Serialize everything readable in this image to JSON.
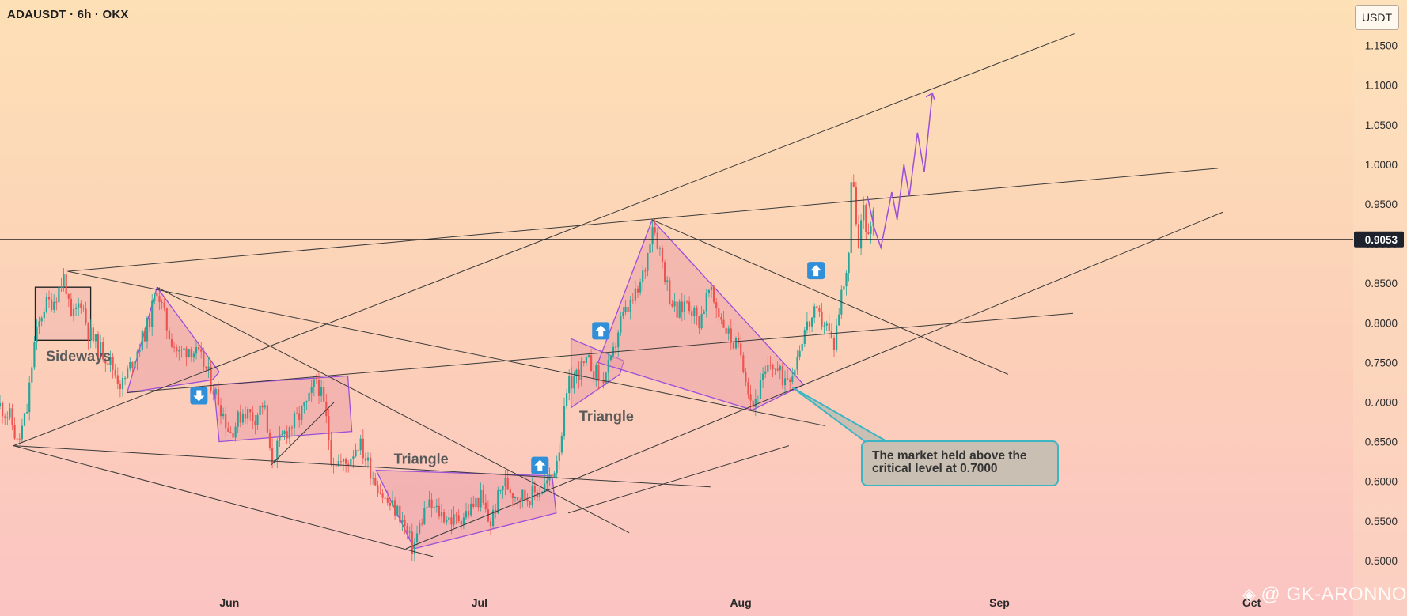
{
  "header": {
    "symbol_line": "ADAUSDT · 6h · OKX",
    "unit_badge": "USDT"
  },
  "watermark": {
    "text": "@ GK-ARONNO",
    "logo_icon": "tradingview-diamond-icon"
  },
  "annotation": {
    "line1": "The market held above the",
    "line2": "critical level at 0.7000"
  },
  "chart_data": {
    "type": "candlestick",
    "title": "",
    "xlabel": "",
    "ylabel": "",
    "y_ticks": [
      "1.1500",
      "1.1000",
      "1.0500",
      "1.0000",
      "0.9500",
      "0.9000",
      "0.8500",
      "0.8000",
      "0.7500",
      "0.7000",
      "0.6500",
      "0.6000",
      "0.5500",
      "0.5000"
    ],
    "x_ticks": [
      {
        "label": "Jun",
        "t": 0.1695
      },
      {
        "label": "Jul",
        "t": 0.3543
      },
      {
        "label": "Aug",
        "t": 0.5474
      },
      {
        "label": "Sep",
        "t": 0.7386
      },
      {
        "label": "Oct",
        "t": 0.9249
      }
    ],
    "ylim": [
      0.48,
      1.16
    ],
    "current_price": {
      "value": 0.9053,
      "label": "0.9053"
    },
    "price_path": [
      [
        0.0,
        0.695
      ],
      [
        0.008,
        0.68
      ],
      [
        0.013,
        0.645
      ],
      [
        0.02,
        0.69
      ],
      [
        0.025,
        0.77
      ],
      [
        0.032,
        0.82
      ],
      [
        0.04,
        0.83
      ],
      [
        0.048,
        0.86
      ],
      [
        0.052,
        0.8
      ],
      [
        0.06,
        0.83
      ],
      [
        0.065,
        0.79
      ],
      [
        0.072,
        0.77
      ],
      [
        0.08,
        0.755
      ],
      [
        0.09,
        0.72
      ],
      [
        0.1,
        0.76
      ],
      [
        0.11,
        0.8
      ],
      [
        0.116,
        0.845
      ],
      [
        0.124,
        0.79
      ],
      [
        0.132,
        0.76
      ],
      [
        0.14,
        0.77
      ],
      [
        0.15,
        0.75
      ],
      [
        0.156,
        0.725
      ],
      [
        0.162,
        0.7
      ],
      [
        0.17,
        0.66
      ],
      [
        0.18,
        0.69
      ],
      [
        0.188,
        0.68
      ],
      [
        0.195,
        0.7
      ],
      [
        0.2,
        0.625
      ],
      [
        0.21,
        0.66
      ],
      [
        0.22,
        0.68
      ],
      [
        0.228,
        0.7
      ],
      [
        0.234,
        0.73
      ],
      [
        0.24,
        0.69
      ],
      [
        0.245,
        0.63
      ],
      [
        0.255,
        0.62
      ],
      [
        0.265,
        0.65
      ],
      [
        0.275,
        0.61
      ],
      [
        0.285,
        0.575
      ],
      [
        0.295,
        0.56
      ],
      [
        0.305,
        0.515
      ],
      [
        0.315,
        0.57
      ],
      [
        0.325,
        0.56
      ],
      [
        0.335,
        0.55
      ],
      [
        0.345,
        0.56
      ],
      [
        0.355,
        0.58
      ],
      [
        0.362,
        0.545
      ],
      [
        0.372,
        0.6
      ],
      [
        0.38,
        0.585
      ],
      [
        0.39,
        0.58
      ],
      [
        0.4,
        0.59
      ],
      [
        0.408,
        0.605
      ],
      [
        0.414,
        0.65
      ],
      [
        0.42,
        0.72
      ],
      [
        0.428,
        0.74
      ],
      [
        0.436,
        0.75
      ],
      [
        0.444,
        0.725
      ],
      [
        0.452,
        0.75
      ],
      [
        0.458,
        0.8
      ],
      [
        0.465,
        0.82
      ],
      [
        0.472,
        0.84
      ],
      [
        0.478,
        0.88
      ],
      [
        0.482,
        0.93
      ],
      [
        0.488,
        0.89
      ],
      [
        0.494,
        0.84
      ],
      [
        0.5,
        0.81
      ],
      [
        0.508,
        0.83
      ],
      [
        0.516,
        0.8
      ],
      [
        0.524,
        0.84
      ],
      [
        0.532,
        0.81
      ],
      [
        0.54,
        0.78
      ],
      [
        0.548,
        0.76
      ],
      [
        0.556,
        0.695
      ],
      [
        0.562,
        0.72
      ],
      [
        0.57,
        0.75
      ],
      [
        0.578,
        0.73
      ],
      [
        0.586,
        0.74
      ],
      [
        0.594,
        0.79
      ],
      [
        0.602,
        0.81
      ],
      [
        0.61,
        0.8
      ],
      [
        0.616,
        0.77
      ],
      [
        0.622,
        0.84
      ],
      [
        0.627,
        0.88
      ],
      [
        0.63,
        1.01
      ],
      [
        0.634,
        0.88
      ],
      [
        0.638,
        0.95
      ],
      [
        0.642,
        0.9
      ],
      [
        0.646,
        0.96
      ]
    ],
    "projection_path": [
      [
        0.641,
        0.96
      ],
      [
        0.646,
        0.92
      ],
      [
        0.651,
        0.895
      ],
      [
        0.659,
        0.965
      ],
      [
        0.663,
        0.93
      ],
      [
        0.668,
        1.0
      ],
      [
        0.672,
        0.96
      ],
      [
        0.678,
        1.04
      ],
      [
        0.683,
        0.99
      ],
      [
        0.689,
        1.09
      ]
    ],
    "lines": [
      {
        "name": "long-upper-line",
        "from": [
          0.01,
          0.645
        ],
        "to": [
          0.794,
          1.165
        ]
      },
      {
        "name": "upper-rising-line",
        "from": [
          0.05,
          0.865
        ],
        "to": [
          0.9,
          0.995
        ]
      },
      {
        "name": "middle-rising-line",
        "from": [
          0.094,
          0.712
        ],
        "to": [
          0.793,
          0.812
        ]
      },
      {
        "name": "lower-rising-line",
        "from": [
          0.3,
          0.515
        ],
        "to": [
          0.904,
          0.94
        ]
      },
      {
        "name": "mid-lower-rising-line",
        "from": [
          0.42,
          0.56
        ],
        "to": [
          0.583,
          0.645
        ]
      },
      {
        "name": "falling-line-1",
        "from": [
          0.05,
          0.865
        ],
        "to": [
          0.61,
          0.67
        ]
      },
      {
        "name": "falling-line-2",
        "from": [
          0.116,
          0.845
        ],
        "to": [
          0.465,
          0.535
        ]
      },
      {
        "name": "falling-line-3",
        "from": [
          0.482,
          0.93
        ],
        "to": [
          0.745,
          0.735
        ]
      },
      {
        "name": "bottom-falling-line",
        "from": [
          0.01,
          0.645
        ],
        "to": [
          0.32,
          0.505
        ]
      },
      {
        "name": "flat-descending-line",
        "from": [
          0.01,
          0.645
        ],
        "to": [
          0.525,
          0.593
        ]
      },
      {
        "name": "short-diagonal",
        "from": [
          0.2,
          0.62
        ],
        "to": [
          0.247,
          0.7
        ]
      }
    ],
    "patterns": [
      {
        "name": "sideways-box",
        "label": "Sideways",
        "points": [
          [
            0.026,
            0.845
          ],
          [
            0.067,
            0.845
          ],
          [
            0.067,
            0.778
          ],
          [
            0.026,
            0.778
          ]
        ]
      },
      {
        "name": "triangle-1",
        "points": [
          [
            0.094,
            0.712
          ],
          [
            0.116,
            0.845
          ],
          [
            0.162,
            0.738
          ],
          [
            0.157,
            0.728
          ]
        ]
      },
      {
        "name": "flag-box",
        "points": [
          [
            0.158,
            0.722
          ],
          [
            0.257,
            0.733
          ],
          [
            0.26,
            0.663
          ],
          [
            0.162,
            0.65
          ]
        ]
      },
      {
        "name": "triangle-july",
        "label": "Triangle",
        "points": [
          [
            0.278,
            0.614
          ],
          [
            0.408,
            0.607
          ],
          [
            0.411,
            0.56
          ],
          [
            0.306,
            0.515
          ]
        ]
      },
      {
        "name": "triangle-2",
        "label": "Triangle",
        "points": [
          [
            0.422,
            0.78
          ],
          [
            0.461,
            0.752
          ],
          [
            0.458,
            0.735
          ],
          [
            0.422,
            0.693
          ]
        ]
      },
      {
        "name": "falling-channel",
        "points": [
          [
            0.442,
            0.75
          ],
          [
            0.482,
            0.93
          ],
          [
            0.594,
            0.722
          ],
          [
            0.556,
            0.69
          ]
        ]
      }
    ],
    "signals": [
      {
        "name": "down-arrow-signal",
        "direction": "down",
        "t": 0.147,
        "price": 0.708
      },
      {
        "name": "up-arrow-signal-1",
        "direction": "up",
        "t": 0.399,
        "price": 0.62
      },
      {
        "name": "up-arrow-signal-2",
        "direction": "up",
        "t": 0.444,
        "price": 0.79
      },
      {
        "name": "up-arrow-signal-3",
        "direction": "up",
        "t": 0.603,
        "price": 0.866
      }
    ],
    "callout_pointer": {
      "t": 0.586,
      "price": 0.718
    },
    "colors": {
      "up_candle": "#26a69a",
      "down_candle": "#ef5350",
      "pattern_stroke": "#9c4fd8",
      "pattern_fill": "#e8a7ad",
      "signal_bg": "#2f8fd8",
      "callout_border": "#3bb5c4",
      "callout_bg": "#c9bfb2",
      "line_color": "#3a3a3a",
      "price_label_bg": "#1e222d"
    }
  }
}
